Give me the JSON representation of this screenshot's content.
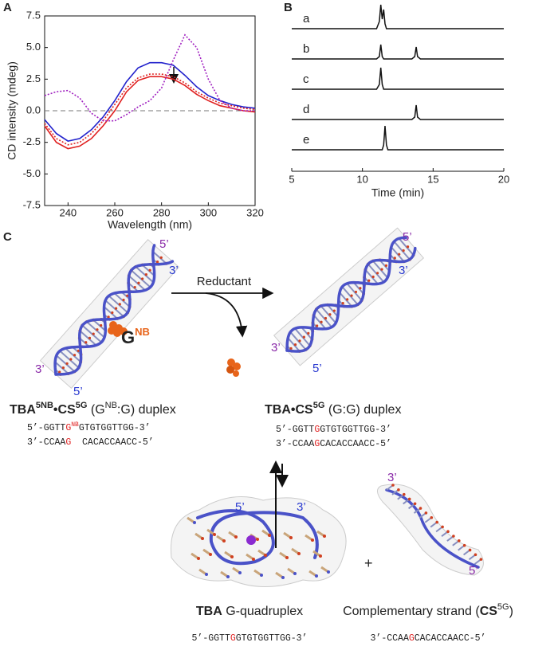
{
  "chart_data": [
    {
      "type": "line",
      "xlabel": "Wavelength (nm)",
      "ylabel": "CD intensity (mdeg)",
      "xlim": [
        230,
        320
      ],
      "ylim": [
        -7.5,
        7.5
      ],
      "xticks": [
        240,
        260,
        280,
        300,
        320
      ],
      "yticks": [
        7.5,
        {
          "value": 5,
          "label": "5.0"
        },
        2.5,
        {
          "value": 0,
          "label": "0.0"
        },
        -2.5,
        {
          "value": -5,
          "label": "-5.0"
        },
        -7.5
      ],
      "reference_line": 0,
      "x": [
        230,
        235,
        240,
        245,
        250,
        255,
        260,
        265,
        270,
        275,
        280,
        285,
        290,
        295,
        300,
        305,
        310,
        315,
        320
      ],
      "series": [
        {
          "color": "#2222cc",
          "dash": false,
          "values": [
            -0.7,
            -1.8,
            -2.4,
            -2.2,
            -1.5,
            -0.5,
            0.8,
            2.3,
            3.4,
            3.8,
            3.8,
            3.6,
            2.8,
            1.9,
            1.2,
            0.8,
            0.5,
            0.3,
            0.2
          ]
        },
        {
          "color": "#e02020",
          "dash": false,
          "values": [
            -1.2,
            -2.5,
            -3.0,
            -2.8,
            -2.2,
            -1.2,
            0.0,
            1.5,
            2.4,
            2.7,
            2.7,
            2.5,
            2.0,
            1.3,
            0.8,
            0.4,
            0.2,
            0.0,
            -0.1
          ]
        },
        {
          "color": "#e02020",
          "dash": true,
          "values": [
            -1.0,
            -2.2,
            -2.7,
            -2.5,
            -1.8,
            -0.8,
            0.5,
            1.8,
            2.6,
            2.9,
            2.9,
            2.7,
            2.2,
            1.5,
            1.0,
            0.6,
            0.4,
            0.2,
            0.1
          ]
        },
        {
          "color": "#a020c0",
          "dash": true,
          "values": [
            1.2,
            1.5,
            1.6,
            1.0,
            -0.2,
            -0.8,
            -0.8,
            -0.3,
            0.3,
            0.8,
            1.8,
            4.0,
            6.0,
            5.0,
            2.5,
            0.8,
            0.2,
            0.0,
            0.0
          ]
        }
      ]
    },
    {
      "type": "chromatogram",
      "xlabel": "Time (min)",
      "xlim": [
        5,
        20
      ],
      "xticks": [
        5,
        10,
        15,
        20
      ],
      "x": [
        5,
        10,
        11,
        11.2,
        11.3,
        11.4,
        11.5,
        11.6,
        11.7,
        11.8,
        12,
        13.5,
        13.7,
        13.8,
        13.9,
        14.1,
        20
      ],
      "series": [
        {
          "name": "a",
          "color": "#111111",
          "values": [
            0,
            0,
            0,
            0.3,
            1.0,
            0.4,
            0.8,
            0.2,
            0,
            0,
            0,
            0,
            0,
            0,
            0,
            0,
            0
          ]
        },
        {
          "name": "b",
          "color": "#111111",
          "values": [
            0,
            0,
            0,
            0.1,
            0.6,
            0.1,
            0,
            0,
            0,
            0,
            0,
            0,
            0.1,
            0.5,
            0.1,
            0,
            0
          ]
        },
        {
          "name": "c",
          "color": "#111111",
          "values": [
            0,
            0,
            0,
            0.2,
            0.9,
            0.2,
            0,
            0,
            0,
            0,
            0,
            0,
            0,
            0,
            0,
            0,
            0
          ]
        },
        {
          "name": "d",
          "color": "#111111",
          "values": [
            0,
            0,
            0,
            0,
            0,
            0,
            0,
            0,
            0,
            0,
            0,
            0,
            0.1,
            0.6,
            0.1,
            0,
            0
          ]
        },
        {
          "name": "e",
          "color": "#111111",
          "values": [
            0,
            0,
            0,
            0,
            0,
            0,
            0.2,
            1.0,
            0.2,
            0,
            0,
            0,
            0,
            0,
            0,
            0,
            0
          ]
        }
      ]
    }
  ],
  "diagram": {
    "panel_labels": [
      "A",
      "B",
      "C"
    ],
    "duplex_nb": {
      "ends": [
        "5’",
        "3’",
        "3’",
        "5’"
      ],
      "group": [
        "G",
        "NB"
      ],
      "caption": [
        "TBA",
        "5NB",
        "•CS",
        "5G",
        " (G",
        "NB",
        ":G) duplex"
      ],
      "seq_top": [
        "5’-GGTT",
        "G",
        "NB",
        "GTGTGGTTGG-3’"
      ],
      "seq_bottom": [
        "3’-CCAA",
        "G",
        "  CACACCAACC-5’"
      ]
    },
    "reagent": "Reductant",
    "duplex": {
      "ends": [
        "5’",
        "3’",
        "3’",
        "5’"
      ],
      "caption": [
        "TBA•CS",
        "5G",
        " (G:G) duplex"
      ],
      "seq_top": [
        "5’-GGTT",
        "G",
        "GTGTGGTTGG-3’"
      ],
      "seq_bottom": [
        "3’-CCAA",
        "G",
        "CACACCAACC-5’"
      ]
    },
    "quadruplex": {
      "ends": [
        "5’",
        "3’"
      ],
      "caption": [
        "TBA",
        " G-quadruplex"
      ],
      "seq": [
        "5’-GGTT",
        "G",
        "GTGTGGTTGG-3’"
      ]
    },
    "plus": "+",
    "strand": {
      "ends": [
        "3’",
        "5’"
      ],
      "caption": [
        "Complementary strand (",
        "CS",
        "5G",
        ")"
      ],
      "seq": [
        "3’-CCAA",
        "G",
        "CACACCAACC-5’"
      ]
    }
  }
}
